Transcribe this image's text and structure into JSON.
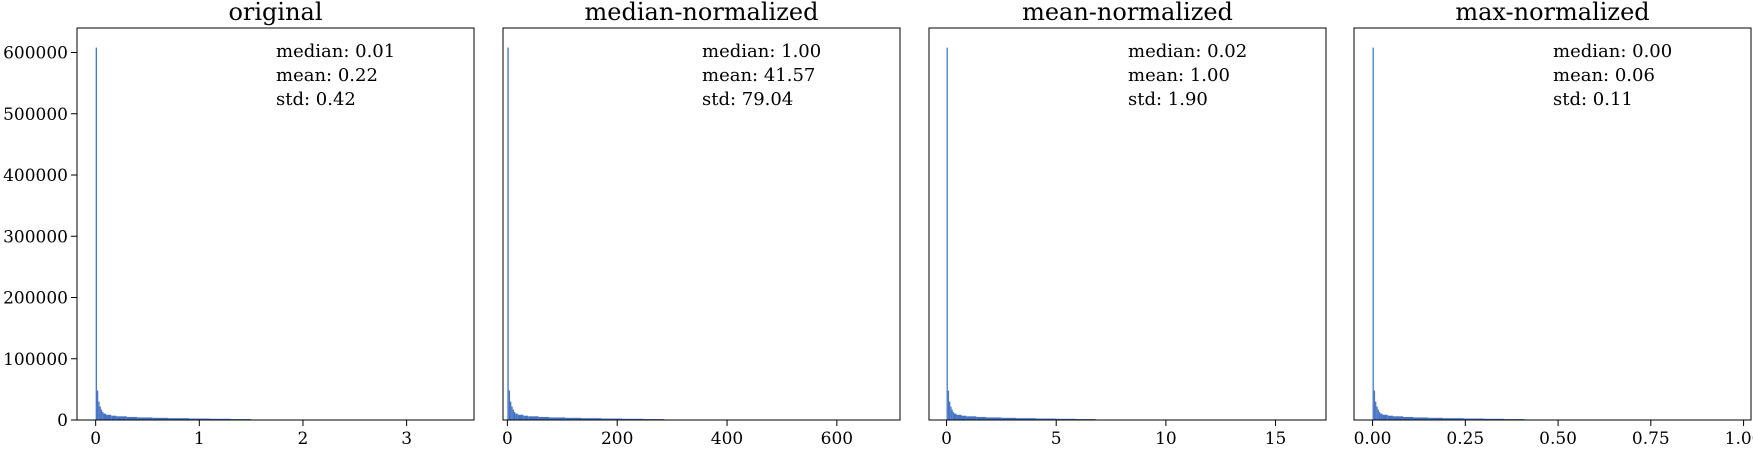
{
  "figure": {
    "bar_color": "#4472c4",
    "frame_color": "#000000",
    "background": "#ffffff"
  },
  "chart_data": [
    {
      "type": "bar",
      "title": "original",
      "xlabel": "",
      "ylabel": "",
      "xlim": [
        -0.18,
        3.65
      ],
      "ylim": [
        0,
        640000
      ],
      "xticks": [
        0,
        1,
        2,
        3
      ],
      "xtick_labels": [
        "0",
        "1",
        "2",
        "3"
      ],
      "yticks": [
        0,
        100000,
        200000,
        300000,
        400000,
        500000,
        600000
      ],
      "ytick_labels": [
        "0",
        "100000",
        "200000",
        "300000",
        "400000",
        "500000",
        "600000"
      ],
      "stats": [
        "median: 0.01",
        "mean: 0.22",
        "std: 0.42"
      ],
      "x": [
        0.0,
        0.0125,
        0.025,
        0.0375,
        0.05,
        0.0625,
        0.075,
        0.1,
        0.15,
        0.2,
        0.3,
        0.4,
        0.55,
        0.7,
        0.9,
        1.1,
        1.3,
        1.5
      ],
      "values": [
        608000,
        48000,
        30000,
        22000,
        17000,
        13000,
        10500,
        8500,
        7000,
        6000,
        5000,
        4200,
        3600,
        3000,
        2400,
        2000,
        1500,
        700
      ]
    },
    {
      "type": "bar",
      "title": "median-normalized",
      "xlabel": "",
      "ylabel": "",
      "xlim": [
        -8,
        715
      ],
      "ylim": [
        0,
        640000
      ],
      "xticks": [
        0,
        200,
        400,
        600
      ],
      "xtick_labels": [
        "0",
        "200",
        "400",
        "600"
      ],
      "yticks": [],
      "ytick_labels": [],
      "stats": [
        "median: 1.00",
        "mean: 41.57",
        "std: 79.04"
      ],
      "x": [
        0,
        2.4,
        4.8,
        7.2,
        9.6,
        12,
        14.4,
        19,
        29,
        38,
        57,
        76,
        105,
        134,
        171,
        210,
        248,
        286
      ],
      "values": [
        608000,
        48000,
        30000,
        22000,
        17000,
        13000,
        10500,
        8500,
        7000,
        6000,
        5000,
        4200,
        3600,
        3000,
        2400,
        2000,
        1500,
        700
      ]
    },
    {
      "type": "bar",
      "title": "mean-normalized",
      "xlabel": "",
      "ylabel": "",
      "xlim": [
        -0.8,
        17.3
      ],
      "ylim": [
        0,
        640000
      ],
      "xticks": [
        0,
        5,
        10,
        15
      ],
      "xtick_labels": [
        "0",
        "5",
        "10",
        "15"
      ],
      "yticks": [],
      "ytick_labels": [],
      "stats": [
        "median: 0.02",
        "mean: 1.00",
        "std: 1.90"
      ],
      "x": [
        0,
        0.057,
        0.113,
        0.17,
        0.227,
        0.283,
        0.34,
        0.45,
        0.68,
        0.9,
        1.36,
        1.81,
        2.49,
        3.17,
        4.07,
        4.98,
        5.88,
        6.8
      ],
      "values": [
        608000,
        48000,
        30000,
        22000,
        17000,
        13000,
        10500,
        8500,
        7000,
        6000,
        5000,
        4200,
        3600,
        3000,
        2400,
        2000,
        1500,
        700
      ]
    },
    {
      "type": "bar",
      "title": "max-normalized",
      "xlabel": "",
      "ylabel": "",
      "xlim": [
        -0.05,
        1.02
      ],
      "ylim": [
        0,
        640000
      ],
      "xticks": [
        0,
        0.25,
        0.5,
        0.75,
        1.0
      ],
      "xtick_labels": [
        "0.00",
        "0.25",
        "0.50",
        "0.75",
        "1.00"
      ],
      "yticks": [],
      "ytick_labels": [],
      "stats": [
        "median: 0.00",
        "mean: 0.06",
        "std: 0.11"
      ],
      "x": [
        0,
        0.0034,
        0.0068,
        0.0102,
        0.0137,
        0.0171,
        0.0205,
        0.027,
        0.041,
        0.055,
        0.082,
        0.109,
        0.15,
        0.19,
        0.245,
        0.3,
        0.355,
        0.41
      ],
      "values": [
        608000,
        48000,
        30000,
        22000,
        17000,
        13000,
        10500,
        8500,
        7000,
        6000,
        5000,
        4200,
        3600,
        3000,
        2400,
        2000,
        1500,
        700
      ]
    }
  ]
}
